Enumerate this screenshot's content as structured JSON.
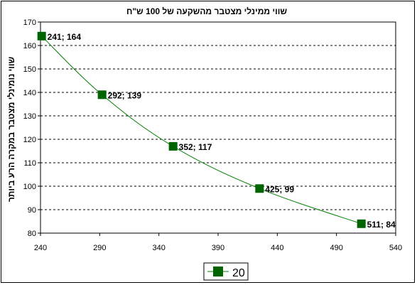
{
  "chart_data": {
    "type": "line",
    "title": "שווי ממינלי  מצטבר מהשקעה של 100 ש\"ח",
    "xlabel": "",
    "ylabel": "שווי נומינלי מצטבר במקרה הרע ביותר",
    "xlim": [
      240,
      540
    ],
    "ylim": [
      80,
      170
    ],
    "xticks": [
      240,
      290,
      340,
      390,
      440,
      490,
      540
    ],
    "yticks": [
      80,
      90,
      100,
      110,
      120,
      130,
      140,
      150,
      160,
      170
    ],
    "grid": "horizontal-dashed",
    "legend_position": "bottom",
    "colors": {
      "line": "#008000",
      "marker": "#006400"
    },
    "series": [
      {
        "name": "20",
        "x": [
          241,
          292,
          352,
          425,
          511
        ],
        "y": [
          164,
          139,
          117,
          99,
          84
        ],
        "labels": [
          "241; 164",
          "292; 139",
          "352; 117",
          "425; 99",
          "511; 84"
        ]
      }
    ]
  }
}
